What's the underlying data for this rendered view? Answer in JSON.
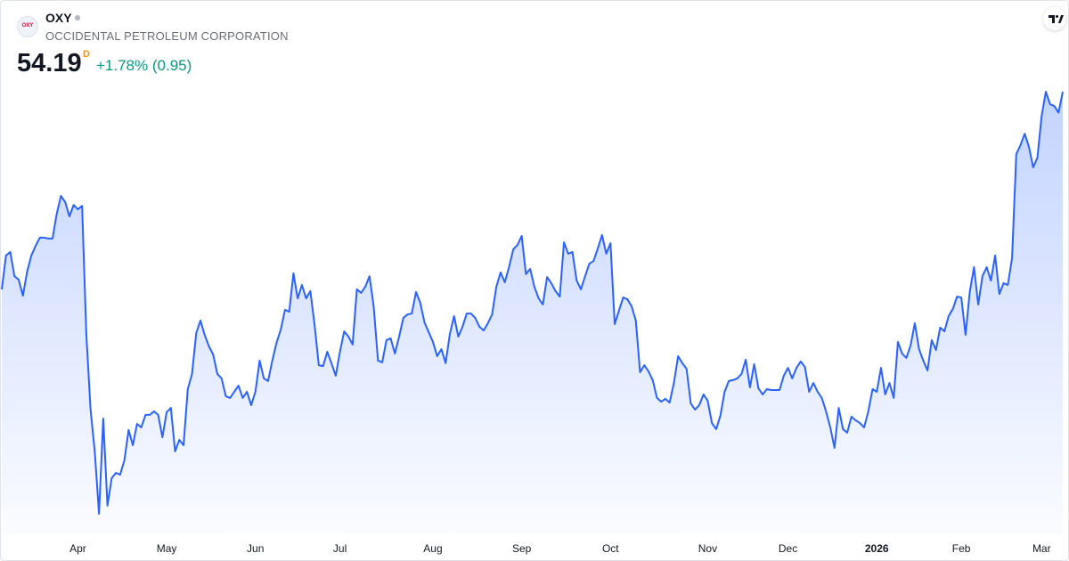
{
  "header": {
    "logo": "OXY",
    "symbol": "OXY",
    "name": "OCCIDENTAL PETROLEUM CORPORATION",
    "price": 54.19,
    "resolution": "D",
    "change": "+1.78% (0.95)"
  },
  "chart_data": {
    "type": "area",
    "series": [
      {
        "name": "OXY",
        "color": "#2962ff",
        "values": [
          45.2,
          46.74,
          46.9,
          45.8,
          45.64,
          44.91,
          46.01,
          46.74,
          47.18,
          47.55,
          47.55,
          47.51,
          47.51,
          48.64,
          49.45,
          49.17,
          48.52,
          49.04,
          48.84,
          49.0,
          43.17,
          39.73,
          37.83,
          34.99,
          39.32,
          35.36,
          36.61,
          36.85,
          36.77,
          37.42,
          38.8,
          38.11,
          39.08,
          38.92,
          39.49,
          39.49,
          39.65,
          39.49,
          38.47,
          39.61,
          39.81,
          37.83,
          38.35,
          38.11,
          40.66,
          41.35,
          43.21,
          43.78,
          43.13,
          42.61,
          42.24,
          41.35,
          41.15,
          40.34,
          40.26,
          40.54,
          40.82,
          40.26,
          40.54,
          39.93,
          40.54,
          41.96,
          41.15,
          41.03,
          41.96,
          42.77,
          43.37,
          44.27,
          44.18,
          45.93,
          44.79,
          45.4,
          44.79,
          45.12,
          43.58,
          41.75,
          41.71,
          42.36,
          41.84,
          41.27,
          42.36,
          43.29,
          43.05,
          42.69,
          45.2,
          45.04,
          45.32,
          45.8,
          44.39,
          41.96,
          41.88,
          42.89,
          42.97,
          42.28,
          43.05,
          43.9,
          44.06,
          44.1,
          45.08,
          44.59,
          43.7,
          43.25,
          42.81,
          42.16,
          42.48,
          41.84,
          43.17,
          43.98,
          43.05,
          43.5,
          44.1,
          44.1,
          43.9,
          43.5,
          43.33,
          43.66,
          44.06,
          45.32,
          45.97,
          45.52,
          46.21,
          47.02,
          47.22,
          47.63,
          45.89,
          46.13,
          45.32,
          44.79,
          44.51,
          45.76,
          45.48,
          45.12,
          44.87,
          47.34,
          46.82,
          46.9,
          45.6,
          45.2,
          45.8,
          46.37,
          46.49,
          47.06,
          47.67,
          46.82,
          47.3,
          43.62,
          44.23,
          44.83,
          44.75,
          44.43,
          43.78,
          41.43,
          41.75,
          41.47,
          41.07,
          40.26,
          40.09,
          40.22,
          40.05,
          40.94,
          42.16,
          41.84,
          41.59,
          40.01,
          39.73,
          39.93,
          40.42,
          40.13,
          39.12,
          38.84,
          39.45,
          40.54,
          41.03,
          41.07,
          41.15,
          41.35,
          42.0,
          40.74,
          41.8,
          40.7,
          40.42,
          40.66,
          40.62,
          40.62,
          40.62,
          41.27,
          41.63,
          41.15,
          41.63,
          41.92,
          41.67,
          40.54,
          40.94,
          40.54,
          40.26,
          39.65,
          38.92,
          37.99,
          39.81,
          38.84,
          38.68,
          39.41,
          39.24,
          39.12,
          38.92,
          39.65,
          40.66,
          40.54,
          41.63,
          40.42,
          40.94,
          40.26,
          42.81,
          42.28,
          42.08,
          42.65,
          43.66,
          42.48,
          41.96,
          41.51,
          42.89,
          42.44,
          43.46,
          43.29,
          43.98,
          44.31,
          44.87,
          44.83,
          43.13,
          45.08,
          46.21,
          44.51,
          45.8,
          46.21,
          45.6,
          46.74,
          44.99,
          45.48,
          45.4,
          46.61,
          51.35,
          51.76,
          52.28,
          51.68,
          50.75,
          51.19,
          53.09,
          54.19,
          53.62,
          53.54,
          53.24,
          54.19
        ]
      }
    ],
    "xticks": [
      {
        "value": 18,
        "label": "Apr"
      },
      {
        "value": 39,
        "label": "May"
      },
      {
        "value": 60,
        "label": "Jun"
      },
      {
        "value": 80,
        "label": "Jul"
      },
      {
        "value": 102,
        "label": "Aug"
      },
      {
        "value": 123,
        "label": "Sep"
      },
      {
        "value": 144,
        "label": "Oct"
      },
      {
        "value": 167,
        "label": "Nov"
      },
      {
        "value": 186,
        "label": "Dec"
      },
      {
        "value": 207,
        "label": "2026"
      },
      {
        "value": 227,
        "label": "Feb"
      },
      {
        "value": 246,
        "label": "Mar"
      }
    ]
  }
}
